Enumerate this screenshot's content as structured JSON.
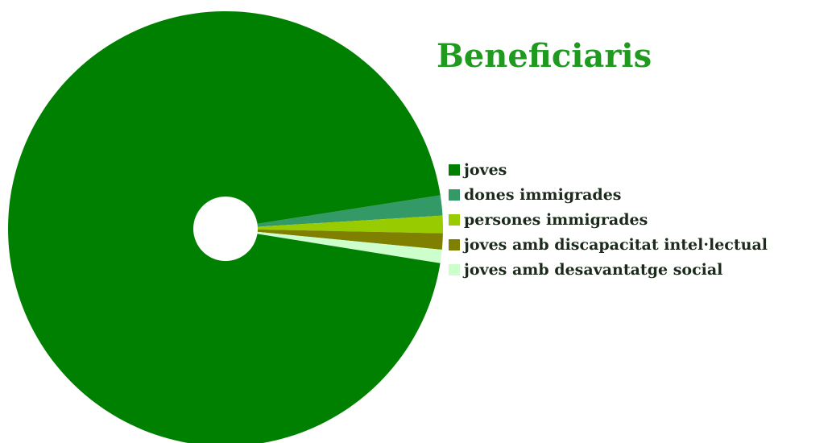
{
  "chart_data": {
    "type": "pie",
    "title": "Beneficiaris",
    "donut_hole": true,
    "legend_position": "right",
    "slices": [
      {
        "label": "joves",
        "value": 95.0,
        "color": "#008000"
      },
      {
        "label": "dones immigrades",
        "value": 1.5,
        "color": "#339966"
      },
      {
        "label": "persones immigrades",
        "value": 1.3,
        "color": "#99cc00"
      },
      {
        "label": "joves amb discapacitat intel·lectual",
        "value": 1.2,
        "color": "#808000"
      },
      {
        "label": "joves amb desavantatge social",
        "value": 1.0,
        "color": "#ccffcc"
      }
    ]
  },
  "colors": {
    "title": "#1f9a1f"
  }
}
